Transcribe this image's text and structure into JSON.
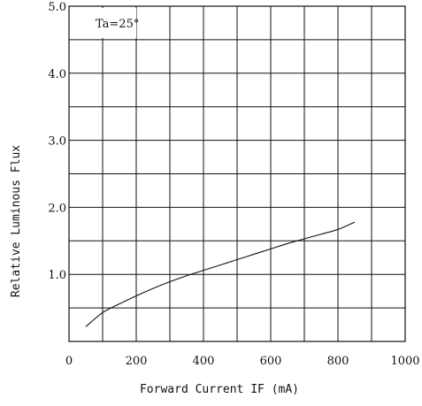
{
  "chart_data": {
    "type": "line",
    "title": "",
    "xlabel": "Forward Current IF (mA)",
    "ylabel": "Relative Luminous Flux",
    "xlim": [
      0,
      1000
    ],
    "ylim": [
      0,
      5
    ],
    "x_ticks": [
      0,
      200,
      400,
      600,
      800,
      1000
    ],
    "x_tick_labels": [
      "0",
      "200",
      "400",
      "600",
      "800",
      "1000"
    ],
    "x_grid_step": 100,
    "y_ticks": [
      1,
      2,
      3,
      4,
      5
    ],
    "y_tick_labels": [
      "1.0",
      "2.0",
      "3.0",
      "4.0",
      "5.0"
    ],
    "y_grid_step": 0.5,
    "grid": true,
    "annotation": "Ta=25°",
    "annotation_position": "top-left",
    "series": [
      {
        "x": [
          50,
          100,
          150,
          200,
          250,
          300,
          350,
          400,
          450,
          500,
          550,
          600,
          650,
          700,
          750,
          800,
          850
        ],
        "y": [
          0.22,
          0.43,
          0.56,
          0.68,
          0.79,
          0.89,
          0.98,
          1.06,
          1.14,
          1.22,
          1.3,
          1.38,
          1.46,
          1.53,
          1.6,
          1.67,
          1.78
        ]
      }
    ]
  }
}
